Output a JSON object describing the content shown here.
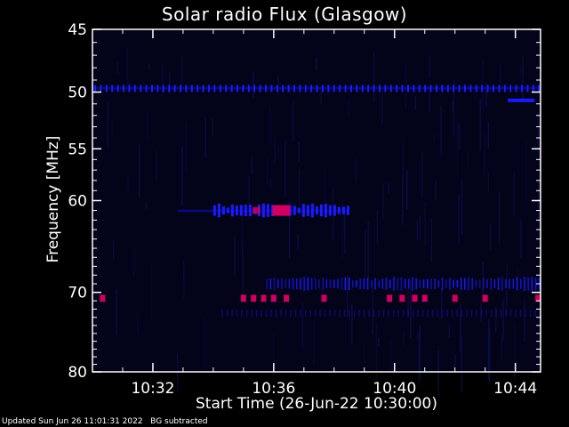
{
  "footer": {
    "updated": "Updated Sun Jun 26 11:01:31 2022",
    "note": "BG subtracted"
  },
  "colors": {
    "background": "#000000",
    "plot_background": "#03031a",
    "axis": "#ffffff",
    "low_signal": "#1a1aff",
    "high_signal": "#d00060"
  },
  "chart_data": {
    "type": "heatmap",
    "title": "Solar radio Flux (Glasgow)",
    "xlabel": "Start Time (26-Jun-22 10:30:00)",
    "ylabel": "Frequency [MHz]",
    "x_range_minutes": [
      10.5,
      10.75
    ],
    "xticks": [
      "10:32",
      "10:36",
      "10:40",
      "10:44"
    ],
    "yticks": [
      "45",
      "50",
      "55",
      "60",
      "70",
      "80"
    ],
    "ytick_values_mhz": [
      45,
      50,
      55,
      60,
      70,
      80
    ],
    "ylim_mhz": [
      45,
      80
    ],
    "y_scale": "log",
    "features": [
      {
        "name": "continuous band",
        "freq_mhz": 49.7,
        "time_range": [
          "10:30:00",
          "10:44:50"
        ],
        "intensity": "low"
      },
      {
        "name": "burst cluster",
        "freq_mhz": 61,
        "time_range": [
          "10:34:00",
          "10:38:30"
        ],
        "intensity": "high",
        "peak_time": "10:36:15"
      },
      {
        "name": "intermittent band",
        "freq_mhz": 69,
        "time_range": [
          "10:35:45",
          "10:44:50"
        ],
        "intensity": "low"
      },
      {
        "name": "interference spikes",
        "freq_mhz": 70.7,
        "times": [
          "10:30:20",
          "10:35:00",
          "10:35:20",
          "10:35:40",
          "10:36:00",
          "10:36:25",
          "10:37:40",
          "10:39:50",
          "10:40:15",
          "10:40:40",
          "10:41:00",
          "10:42:00",
          "10:43:00",
          "10:44:45"
        ],
        "intensity": "high"
      }
    ]
  }
}
